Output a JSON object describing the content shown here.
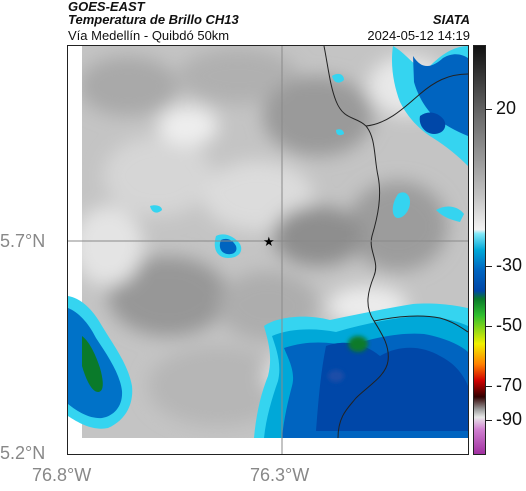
{
  "header": {
    "title": "GOES-EAST",
    "subtitle": "Temperatura de Brillo CH13",
    "region": "Vía Medellín - Quibdó 50km",
    "source": "SIATA",
    "timestamp": "2024-05-12 14:19"
  },
  "map": {
    "lat_ticks": [
      {
        "value": 5.7,
        "label": "5.7°N"
      },
      {
        "value": 5.2,
        "label": "5.2°N"
      }
    ],
    "lon_ticks": [
      {
        "value": -76.8,
        "label": "76.8°W"
      },
      {
        "value": -76.3,
        "label": "76.3°W"
      }
    ],
    "marker": {
      "lat": 5.7,
      "lon": -76.32,
      "symbol": "star"
    },
    "colors": {
      "cloud_cold": "#0047a8",
      "cloud_mid": "#00a8d8",
      "cloud_edge": "#35d4f0",
      "core": "#0a7a2a",
      "gray_light": "#d8d8d8",
      "gray_dark": "#8e8e8e"
    }
  },
  "colorbar": {
    "labels": [
      "20",
      "-30",
      "-50",
      "-70",
      "-90"
    ],
    "label_values": [
      20,
      -30,
      -50,
      -70,
      -90
    ],
    "range": [
      -95,
      45
    ]
  }
}
